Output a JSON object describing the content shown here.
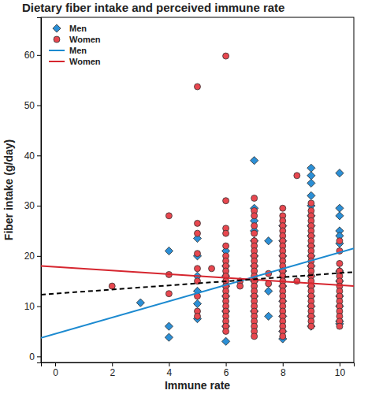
{
  "chart_data": {
    "type": "scatter",
    "title": "Dietary fiber intake and perceived immune rate",
    "x_label": "Immune rate",
    "y_label": "Fiber intake (g/day)",
    "xlim": [
      -0.5,
      10.5
    ],
    "ylim": [
      -1.2,
      67.5
    ],
    "xticks": [
      0,
      2,
      4,
      6,
      8,
      10
    ],
    "yticks": [
      0,
      10,
      20,
      30,
      40,
      50,
      60
    ],
    "grid": false,
    "legend": "top-left",
    "series": [
      {
        "name": "Men",
        "type": "scatter",
        "marker": "diamond",
        "color": "#2b8fd6",
        "x": [
          3,
          4,
          4,
          4,
          5,
          5,
          5,
          5,
          5,
          5,
          6,
          6,
          6,
          6,
          6,
          6,
          6,
          6,
          7,
          7,
          7,
          7,
          7,
          7,
          7,
          7,
          7,
          7,
          7.5,
          7.5,
          7.5,
          8,
          8,
          8,
          8,
          8,
          8,
          8,
          8,
          8,
          9,
          9,
          9,
          9,
          9,
          9,
          9,
          9,
          9,
          9,
          9,
          9,
          9,
          9,
          9,
          9,
          9,
          10,
          10,
          10,
          10,
          10,
          10,
          10,
          10,
          10,
          10,
          10,
          10
        ],
        "values": [
          10.7,
          21,
          6,
          3.8,
          23.5,
          20,
          16,
          13,
          10.5,
          7.5,
          21,
          18,
          16,
          14,
          12,
          9,
          6,
          3,
          39,
          29.5,
          27,
          25,
          23,
          20,
          18,
          15,
          12,
          9,
          23,
          13,
          8,
          26,
          23,
          20,
          17,
          14,
          11,
          8,
          5,
          3.5,
          37.5,
          36,
          34.5,
          32,
          30,
          28,
          26,
          24,
          22,
          20,
          18,
          16,
          14,
          12,
          10,
          8,
          6,
          36.5,
          29.5,
          28,
          25,
          24,
          22.5,
          17,
          15,
          12,
          10,
          7,
          6.5
        ]
      },
      {
        "name": "Women",
        "type": "scatter",
        "marker": "circle",
        "color": "#e8474f",
        "x": [
          2,
          4,
          4,
          4,
          5,
          5,
          5,
          5,
          5,
          5,
          5,
          5,
          5,
          5.5,
          6,
          6,
          6,
          6,
          6,
          6,
          6,
          6,
          6,
          6,
          6,
          6,
          6,
          6,
          6,
          6,
          6,
          6,
          6,
          6,
          6,
          6.5,
          6.5,
          7,
          7,
          7,
          7,
          7,
          7,
          7,
          7,
          7,
          7,
          7,
          7,
          7,
          7,
          7,
          7,
          7,
          7,
          7,
          7,
          7,
          7,
          7,
          7,
          7,
          7.5,
          7.5,
          8,
          8,
          8,
          8,
          8,
          8,
          8,
          8,
          8,
          8,
          8,
          8,
          8,
          8,
          8,
          8,
          8,
          8,
          8,
          8,
          8,
          8,
          8,
          8,
          8,
          8,
          8.5,
          8.5,
          9,
          9,
          9,
          9,
          9,
          9,
          9,
          9,
          9,
          9,
          9,
          9,
          9,
          9,
          9,
          9,
          9,
          9,
          9,
          9,
          9,
          9,
          9,
          9,
          9,
          10,
          10,
          10,
          10,
          10,
          10,
          10,
          10,
          10,
          10,
          10,
          10,
          10,
          10,
          10
        ],
        "values": [
          14,
          28,
          16.3,
          12.5,
          53.7,
          26.5,
          24.5,
          20.5,
          17.5,
          15,
          12,
          9,
          8,
          17.5,
          59.8,
          31,
          25.5,
          24.5,
          22,
          20,
          19,
          18,
          17,
          16,
          15,
          14,
          13,
          12,
          11,
          10,
          9,
          8,
          7,
          6,
          5,
          15,
          14,
          31.5,
          29,
          28,
          26,
          24.5,
          23,
          22,
          21,
          20,
          19,
          18,
          17,
          16,
          15,
          14,
          13,
          12,
          11,
          10,
          9,
          8,
          7,
          6,
          5,
          4,
          16.5,
          14.5,
          29.5,
          28,
          27,
          26,
          25,
          24,
          23,
          22,
          21,
          20,
          19,
          18,
          17,
          16,
          15,
          14,
          13,
          12,
          11,
          10,
          9,
          8,
          7,
          6,
          5,
          4,
          36,
          15,
          30.5,
          29,
          28,
          27,
          26,
          25,
          24,
          23,
          22,
          21,
          20,
          19,
          18,
          17,
          16,
          15,
          14,
          13,
          12,
          11,
          10,
          9,
          8,
          7,
          6,
          23,
          21,
          18.5,
          17,
          16,
          15,
          14,
          13,
          12,
          11,
          10,
          9,
          8,
          7,
          6
        ]
      },
      {
        "name": "Men",
        "type": "line",
        "line_style": "solid",
        "color": "#1c8ad0",
        "x": [
          -0.5,
          10.5
        ],
        "values": [
          3.7,
          21.5
        ]
      },
      {
        "name": "Women",
        "type": "line",
        "line_style": "solid",
        "color": "#d6262f",
        "x": [
          -0.5,
          10.5
        ],
        "values": [
          18,
          14
        ]
      },
      {
        "type": "line",
        "line_style": "dashed",
        "color": "#000000",
        "x": [
          -0.5,
          10.5
        ],
        "values": [
          12.3,
          16.8
        ]
      }
    ]
  }
}
